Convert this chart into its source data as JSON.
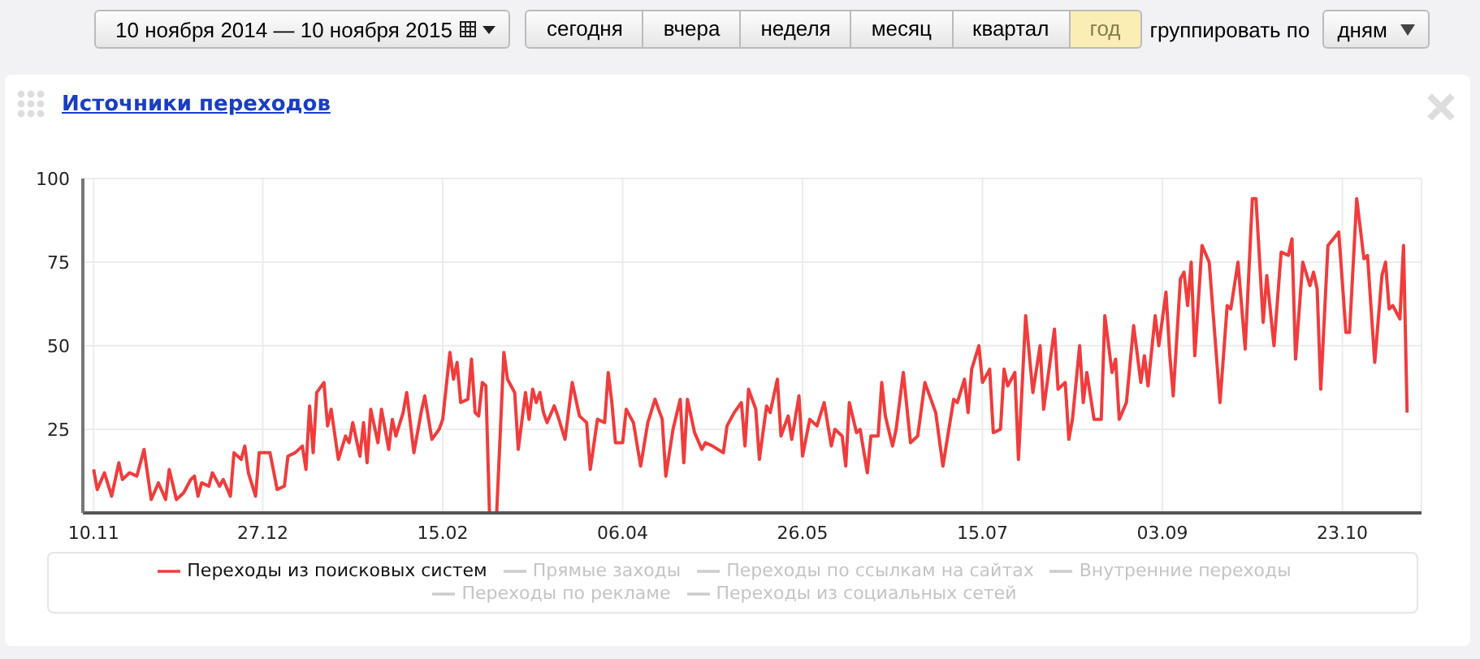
{
  "chart_data": {
    "type": "line",
    "title": "Источники переходов",
    "annotations": [
      "10 ноября 2014 — 10 ноября 2015",
      "сегодня",
      "вчера",
      "неделя",
      "месяц",
      "квартал",
      "год",
      "группировать по",
      "дням"
    ],
    "xlim": [
      "2014-11-07",
      "2015-11-14"
    ],
    "xticks": [
      {
        "value": "2014-11-10",
        "label": "10.11"
      },
      {
        "value": "2014-12-27",
        "label": "27.12"
      },
      {
        "value": "2015-02-15",
        "label": "15.02"
      },
      {
        "value": "2015-04-06",
        "label": "06.04"
      },
      {
        "value": "2015-05-26",
        "label": "26.05"
      },
      {
        "value": "2015-07-15",
        "label": "15.07"
      },
      {
        "value": "2015-09-03",
        "label": "03.09"
      },
      {
        "value": "2015-10-23",
        "label": "23.10"
      }
    ],
    "ylim": [
      0,
      100
    ],
    "yticks": [
      25,
      50,
      75,
      100
    ],
    "grid": true,
    "legend": "bottom",
    "marker": "none",
    "line_style": "solid",
    "series": [
      {
        "name": "Переходы из поисковых систем",
        "color": "#f03c3c",
        "x": [
          "2014-11-10",
          "2014-11-11",
          "2014-11-13",
          "2014-11-15",
          "2014-11-17",
          "2014-11-18",
          "2014-11-20",
          "2014-11-22",
          "2014-11-24",
          "2014-11-26",
          "2014-11-28",
          "2014-11-30",
          "2014-12-01",
          "2014-12-03",
          "2014-12-05",
          "2014-12-07",
          "2014-12-08",
          "2014-12-09",
          "2014-12-10",
          "2014-12-12",
          "2014-12-13",
          "2014-12-15",
          "2014-12-16",
          "2014-12-18",
          "2014-12-19",
          "2014-12-21",
          "2014-12-22",
          "2014-12-23",
          "2014-12-25",
          "2014-12-26",
          "2014-12-29",
          "2014-12-31",
          "2015-01-02",
          "2015-01-03",
          "2015-01-05",
          "2015-01-07",
          "2015-01-08",
          "2015-01-09",
          "2015-01-10",
          "2015-01-11",
          "2015-01-13",
          "2015-01-14",
          "2015-01-15",
          "2015-01-17",
          "2015-01-19",
          "2015-01-20",
          "2015-01-21",
          "2015-01-23",
          "2015-01-24",
          "2015-01-25",
          "2015-01-26",
          "2015-01-28",
          "2015-01-29",
          "2015-01-31",
          "2015-02-01",
          "2015-02-02",
          "2015-02-04",
          "2015-02-05",
          "2015-02-07",
          "2015-02-09",
          "2015-02-10",
          "2015-02-12",
          "2015-02-14",
          "2015-02-15",
          "2015-02-17",
          "2015-02-18",
          "2015-02-19",
          "2015-02-20",
          "2015-02-22",
          "2015-02-23",
          "2015-02-24",
          "2015-02-25",
          "2015-02-26",
          "2015-02-27",
          "2015-02-28",
          "2015-03-02",
          "2015-03-04",
          "2015-03-05",
          "2015-03-07",
          "2015-03-08",
          "2015-03-10",
          "2015-03-11",
          "2015-03-12",
          "2015-03-13",
          "2015-03-14",
          "2015-03-15",
          "2015-03-16",
          "2015-03-18",
          "2015-03-19",
          "2015-03-21",
          "2015-03-23",
          "2015-03-25",
          "2015-03-26",
          "2015-03-27",
          "2015-03-28",
          "2015-03-30",
          "2015-04-01",
          "2015-04-02",
          "2015-04-03",
          "2015-04-04",
          "2015-04-06",
          "2015-04-07",
          "2015-04-09",
          "2015-04-11",
          "2015-04-13",
          "2015-04-15",
          "2015-04-17",
          "2015-04-18",
          "2015-04-20",
          "2015-04-22",
          "2015-04-23",
          "2015-04-24",
          "2015-04-26",
          "2015-04-28",
          "2015-04-29",
          "2015-05-01",
          "2015-05-04",
          "2015-05-05",
          "2015-05-07",
          "2015-05-09",
          "2015-05-10",
          "2015-05-11",
          "2015-05-13",
          "2015-05-14",
          "2015-05-16",
          "2015-05-17",
          "2015-05-19",
          "2015-05-20",
          "2015-05-22",
          "2015-05-23",
          "2015-05-25",
          "2015-05-26",
          "2015-05-28",
          "2015-05-30",
          "2015-06-01",
          "2015-06-03",
          "2015-06-04",
          "2015-06-06",
          "2015-06-07",
          "2015-06-08",
          "2015-06-10",
          "2015-06-11",
          "2015-06-13",
          "2015-06-14",
          "2015-06-16",
          "2015-06-17",
          "2015-06-18",
          "2015-06-20",
          "2015-06-21",
          "2015-06-23",
          "2015-06-25",
          "2015-06-27",
          "2015-06-29",
          "2015-07-02",
          "2015-07-04",
          "2015-07-07",
          "2015-07-08",
          "2015-07-10",
          "2015-07-11",
          "2015-07-12",
          "2015-07-14",
          "2015-07-15",
          "2015-07-17",
          "2015-07-18",
          "2015-07-20",
          "2015-07-21",
          "2015-07-22",
          "2015-07-24",
          "2015-07-25",
          "2015-07-27",
          "2015-07-29",
          "2015-07-31",
          "2015-08-01",
          "2015-08-04",
          "2015-08-05",
          "2015-08-07",
          "2015-08-08",
          "2015-08-09",
          "2015-08-11",
          "2015-08-12",
          "2015-08-13",
          "2015-08-15",
          "2015-08-17",
          "2015-08-18",
          "2015-08-20",
          "2015-08-21",
          "2015-08-22",
          "2015-08-24",
          "2015-08-26",
          "2015-08-28",
          "2015-08-29",
          "2015-08-30",
          "2015-09-01",
          "2015-09-02",
          "2015-09-04",
          "2015-09-05",
          "2015-09-06",
          "2015-09-08",
          "2015-09-09",
          "2015-09-10",
          "2015-09-11",
          "2015-09-12",
          "2015-09-14",
          "2015-09-16",
          "2015-09-17",
          "2015-09-19",
          "2015-09-21",
          "2015-09-22",
          "2015-09-24",
          "2015-09-26",
          "2015-09-28",
          "2015-09-29",
          "2015-10-01",
          "2015-10-02",
          "2015-10-04",
          "2015-10-06",
          "2015-10-08",
          "2015-10-09",
          "2015-10-10",
          "2015-10-12",
          "2015-10-14",
          "2015-10-15",
          "2015-10-16",
          "2015-10-17",
          "2015-10-19",
          "2015-10-22",
          "2015-10-24",
          "2015-10-25",
          "2015-10-27",
          "2015-10-29",
          "2015-10-30",
          "2015-11-01",
          "2015-11-03",
          "2015-11-04",
          "2015-11-05",
          "2015-11-06",
          "2015-11-08",
          "2015-11-09",
          "2015-11-10"
        ],
        "values": [
          13,
          7,
          12,
          5,
          15,
          10,
          12,
          11,
          19,
          4,
          9,
          4,
          13,
          4,
          6,
          10,
          11,
          5,
          9,
          8,
          12,
          8,
          10,
          5,
          18,
          16,
          20,
          12,
          5,
          18,
          18,
          7,
          8,
          17,
          18,
          20,
          13,
          32,
          18,
          36,
          39,
          26,
          31,
          16,
          23,
          21,
          27,
          17,
          27,
          15,
          31,
          21,
          31,
          19,
          28,
          23,
          30,
          36,
          18,
          30,
          35,
          22,
          25,
          28,
          48,
          40,
          45,
          33,
          34,
          46,
          30,
          29,
          39,
          38,
          0,
          0,
          48,
          40,
          36,
          19,
          36,
          28,
          37,
          33,
          36,
          30,
          27,
          32,
          29,
          22,
          39,
          29,
          28,
          27,
          13,
          28,
          27,
          42,
          33,
          21,
          21,
          31,
          27,
          14,
          27,
          34,
          28,
          11,
          25,
          34,
          15,
          34,
          24,
          19,
          21,
          20,
          18,
          26,
          30,
          33,
          20,
          37,
          31,
          16,
          32,
          30,
          40,
          23,
          29,
          22,
          35,
          17,
          28,
          26,
          33,
          20,
          25,
          23,
          14,
          33,
          24,
          25,
          12,
          23,
          23,
          39,
          29,
          20,
          25,
          42,
          21,
          23,
          39,
          30,
          14,
          34,
          33,
          40,
          30,
          43,
          50,
          39,
          43,
          24,
          25,
          43,
          38,
          42,
          16,
          59,
          36,
          50,
          31,
          55,
          37,
          39,
          22,
          28,
          50,
          33,
          42,
          28,
          28,
          59,
          42,
          46,
          28,
          33,
          56,
          39,
          47,
          38,
          59,
          50,
          66,
          48,
          35,
          70,
          72,
          62,
          75,
          47,
          80,
          75,
          61,
          33,
          62,
          61,
          75,
          49,
          94,
          94,
          57,
          71,
          50,
          78,
          77,
          82,
          46,
          75,
          68,
          72,
          67,
          37,
          80,
          84,
          54,
          54,
          94,
          76,
          77,
          45,
          71,
          75,
          61,
          62,
          58,
          80,
          30
        ]
      },
      {
        "name": "Прямые заходы",
        "color": "#cccccc"
      },
      {
        "name": "Переходы по ссылкам на сайтах",
        "color": "#cccccc"
      },
      {
        "name": "Внутренние переходы",
        "color": "#cccccc"
      },
      {
        "name": "Переходы по рекламе",
        "color": "#cccccc"
      },
      {
        "name": "Переходы из социальных сетей",
        "color": "#cccccc"
      }
    ]
  }
}
